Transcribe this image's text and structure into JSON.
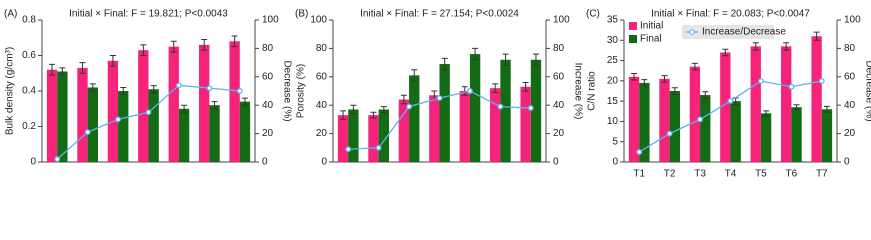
{
  "chart_data": [
    {
      "type": "bar",
      "panel": "(A)",
      "annotation": "Initial × Final: F = 19.821; P<0.0043",
      "ylabel": "Bulk density (g/cm³)",
      "y2label": "Decrease (%)",
      "categories": [
        null,
        null,
        null,
        null,
        null,
        null,
        null
      ],
      "ylim": [
        0,
        0.8
      ],
      "yticks": [
        0,
        0.2,
        0.4,
        0.6,
        0.8
      ],
      "y2lim": [
        0,
        100
      ],
      "y2ticks": [
        0,
        20,
        40,
        60,
        80,
        100
      ],
      "series": [
        {
          "color": "#f5247a",
          "values": [
            0.52,
            0.53,
            0.57,
            0.63,
            0.65,
            0.66,
            0.68
          ],
          "errors": [
            0.03,
            0.03,
            0.03,
            0.03,
            0.03,
            0.03,
            0.03
          ]
        },
        {
          "color": "#136b13",
          "values": [
            0.51,
            0.42,
            0.4,
            0.41,
            0.3,
            0.32,
            0.34
          ],
          "errors": [
            0.02,
            0.02,
            0.02,
            0.02,
            0.02,
            0.02,
            0.02
          ]
        },
        {
          "type": "line",
          "axis": "y2",
          "color": "#5db3ea",
          "values": [
            2,
            21,
            30,
            35,
            54,
            52,
            50
          ]
        }
      ]
    },
    {
      "type": "bar",
      "panel": "(B)",
      "annotation": "Initial × Final: F = 27.154; P<0.0024",
      "ylabel": "Porosity (%)",
      "y2label": "Increase (%)",
      "categories": [
        null,
        null,
        null,
        null,
        null,
        null,
        null
      ],
      "ylim": [
        0,
        100
      ],
      "yticks": [
        0,
        20,
        40,
        60,
        80,
        100
      ],
      "y2lim": [
        0,
        100
      ],
      "y2ticks": [
        0,
        20,
        40,
        60,
        80,
        100
      ],
      "series": [
        {
          "color": "#f5247a",
          "values": [
            33,
            33,
            44,
            47,
            50,
            52,
            53
          ],
          "errors": [
            3,
            2,
            3,
            3,
            3,
            3,
            3
          ]
        },
        {
          "color": "#136b13",
          "values": [
            37,
            37,
            61,
            69,
            76,
            72,
            72
          ],
          "errors": [
            3,
            2,
            4,
            4,
            4,
            4,
            4
          ]
        },
        {
          "type": "line",
          "axis": "y2",
          "color": "#5db3ea",
          "values": [
            9,
            10,
            39,
            45,
            50,
            39,
            38
          ]
        }
      ]
    },
    {
      "type": "bar",
      "panel": "(C)",
      "annotation": "Initial × Final: F = 20.083; P<0.0047",
      "ylabel": "C/N ratio",
      "y2label": "Decrease (%)",
      "categories": [
        "T1",
        "T2",
        "T3",
        "T4",
        "T5",
        "T6",
        "T7"
      ],
      "ylim": [
        0,
        35
      ],
      "yticks": [
        0,
        5,
        10,
        15,
        20,
        25,
        30,
        35
      ],
      "y2lim": [
        0,
        100
      ],
      "y2ticks": [
        0,
        20,
        40,
        60,
        80,
        100
      ],
      "legend": "upper left",
      "series": [
        {
          "name": "Initial",
          "color": "#f5247a",
          "values": [
            21,
            20.5,
            23.5,
            27,
            28.5,
            28.5,
            31
          ],
          "errors": [
            0.8,
            0.8,
            0.8,
            0.8,
            0.9,
            0.9,
            1
          ]
        },
        {
          "name": "Final",
          "color": "#136b13",
          "values": [
            19.5,
            17.5,
            16.5,
            15,
            12,
            13.5,
            13
          ],
          "errors": [
            0.8,
            0.8,
            0.8,
            0.8,
            0.6,
            0.6,
            0.7
          ]
        },
        {
          "name": "Increase/Decrease",
          "type": "line",
          "axis": "y2",
          "color": "#5db3ea",
          "values": [
            7,
            20,
            30,
            43,
            57,
            53,
            57
          ]
        }
      ]
    }
  ]
}
